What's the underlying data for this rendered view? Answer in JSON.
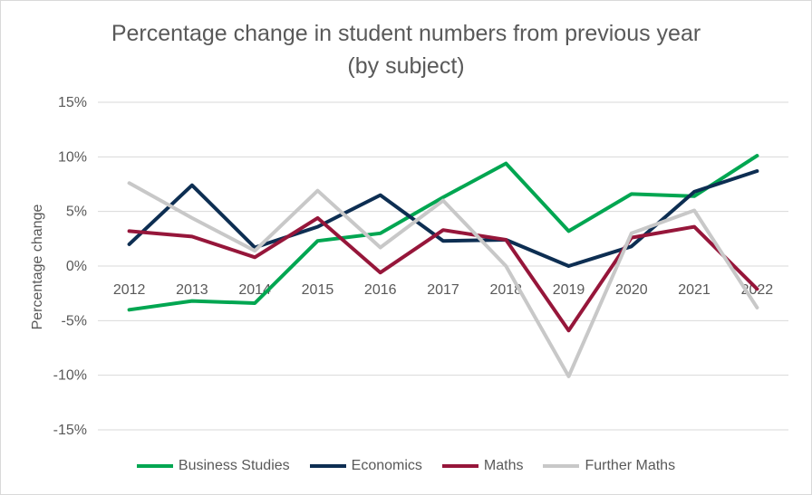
{
  "chart_data": {
    "type": "line",
    "title": "Percentage change in student numbers from previous year",
    "subtitle": "(by subject)",
    "xlabel": "",
    "ylabel": "Percentage change",
    "categories": [
      "2012",
      "2013",
      "2014",
      "2015",
      "2016",
      "2017",
      "2018",
      "2019",
      "2020",
      "2021",
      "2022"
    ],
    "ylim": [
      -15,
      15
    ],
    "yticks": [
      15,
      10,
      5,
      0,
      -5,
      -10,
      -15
    ],
    "ytick_labels": [
      "15%",
      "10%",
      "5%",
      "0%",
      "-5%",
      "-10%",
      "-15%"
    ],
    "grid": true,
    "legend_position": "bottom",
    "series": [
      {
        "name": "Business Studies",
        "color": "#00a651",
        "values": [
          -4.0,
          -3.2,
          -3.4,
          2.3,
          3.0,
          6.3,
          9.4,
          3.2,
          6.6,
          6.4,
          10.1
        ]
      },
      {
        "name": "Economics",
        "color": "#0d2e52",
        "values": [
          2.0,
          7.4,
          1.7,
          3.6,
          6.5,
          2.3,
          2.4,
          0.0,
          1.8,
          6.8,
          8.7
        ]
      },
      {
        "name": "Maths",
        "color": "#96163a",
        "values": [
          3.2,
          2.7,
          0.8,
          4.4,
          -0.6,
          3.3,
          2.4,
          -5.9,
          2.6,
          3.6,
          -2.1
        ]
      },
      {
        "name": "Further Maths",
        "color": "#c8c8c8",
        "values": [
          7.6,
          4.4,
          1.4,
          6.9,
          1.7,
          6.0,
          0.0,
          -10.1,
          3.0,
          5.1,
          -3.8
        ]
      }
    ]
  }
}
